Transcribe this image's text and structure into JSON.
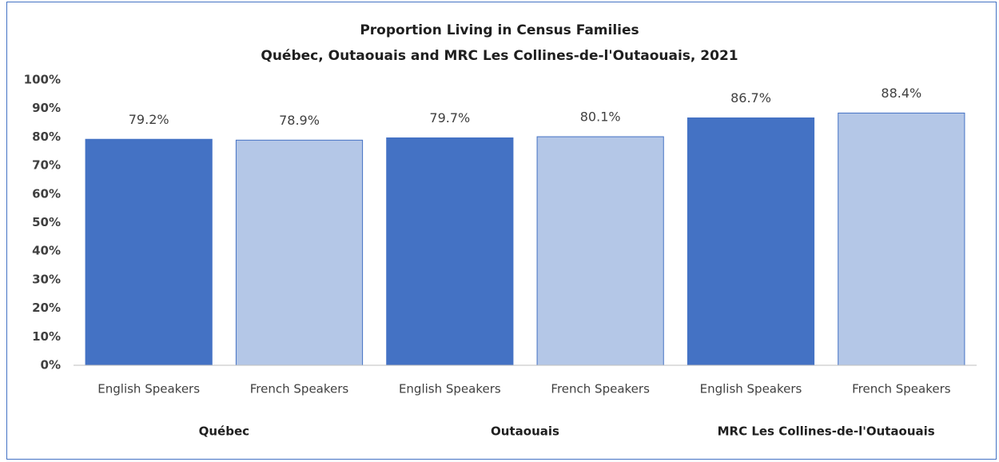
{
  "chart_data": {
    "type": "bar",
    "title": "Proportion Living in Census Families",
    "subtitle": "Québec, Outaouais and MRC Les Collines-de-l'Outaouais,  2021",
    "categories": [
      "English Speakers",
      "French Speakers",
      "English Speakers",
      "French Speakers",
      "English Speakers",
      "French Speakers"
    ],
    "groups": [
      "Québec",
      "Outaouais",
      "MRC Les Collines-de-l'Outaouais"
    ],
    "values": [
      79.2,
      78.9,
      79.7,
      80.1,
      86.7,
      88.4
    ],
    "value_labels": [
      "79.2%",
      "78.9%",
      "79.7%",
      "80.1%",
      "86.7%",
      "88.4%"
    ],
    "colors": [
      "#4472c4",
      "#b4c7e7",
      "#4472c4",
      "#b4c7e7",
      "#4472c4",
      "#b4c7e7"
    ],
    "ylim": [
      0,
      100
    ],
    "yticks": [
      {
        "value": 0,
        "label": "0%"
      },
      {
        "value": 10,
        "label": "10%"
      },
      {
        "value": 20,
        "label": "20%"
      },
      {
        "value": 30,
        "label": "30%"
      },
      {
        "value": 40,
        "label": "40%"
      },
      {
        "value": 50,
        "label": "50%"
      },
      {
        "value": 60,
        "label": "60%"
      },
      {
        "value": 70,
        "label": "70%"
      },
      {
        "value": 80,
        "label": "80%"
      },
      {
        "value": 90,
        "label": "90%"
      },
      {
        "value": 100,
        "label": "100%"
      }
    ],
    "grid": false
  }
}
